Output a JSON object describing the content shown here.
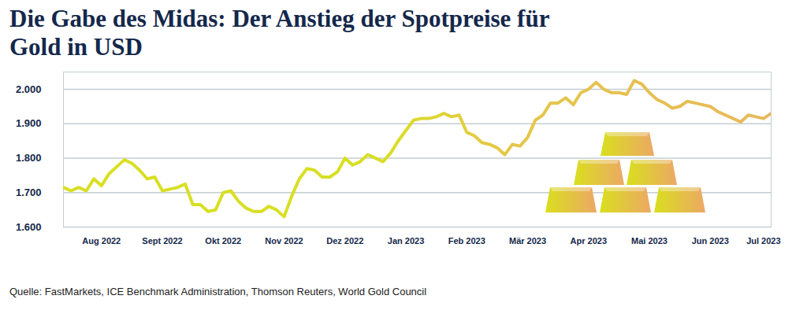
{
  "chart_data": {
    "type": "line",
    "title": "Die Gabe des Midas: Der Anstieg der Spotpreise für Gold in USD",
    "source": "Quelle: FastMarkets, ICE Benchmark Administration, Thomson Reuters, World Gold Council",
    "categories": [
      null,
      null,
      null,
      null,
      null,
      "Aug 2022",
      null,
      null,
      null,
      null,
      null,
      null,
      null,
      "Sept 2022",
      null,
      null,
      null,
      null,
      null,
      null,
      null,
      "Okt 2022",
      null,
      null,
      null,
      null,
      null,
      null,
      null,
      "Nov 2022",
      null,
      null,
      null,
      null,
      null,
      null,
      null,
      "Dez 2022",
      null,
      null,
      null,
      null,
      null,
      null,
      null,
      "Jan 2023",
      null,
      null,
      null,
      null,
      null,
      null,
      null,
      "Feb 2023",
      null,
      null,
      null,
      null,
      null,
      null,
      null,
      "Mär 2023",
      null,
      null,
      null,
      null,
      null,
      null,
      null,
      "Apr 2023",
      null,
      null,
      null,
      null,
      null,
      null,
      null,
      "Mai 2023",
      null,
      null,
      null,
      null,
      null,
      null,
      null,
      "Jun 2023",
      null,
      null,
      null,
      null,
      null,
      null,
      "Jul 2023",
      null
    ],
    "values": [
      1715,
      1705,
      1715,
      1705,
      1740,
      1720,
      1755,
      1775,
      1795,
      1785,
      1765,
      1740,
      1745,
      1705,
      1710,
      1715,
      1725,
      1665,
      1665,
      1645,
      1650,
      1700,
      1705,
      1675,
      1655,
      1645,
      1645,
      1660,
      1650,
      1630,
      1690,
      1740,
      1770,
      1765,
      1745,
      1745,
      1760,
      1800,
      1780,
      1790,
      1810,
      1800,
      1790,
      1815,
      1850,
      1880,
      1910,
      1915,
      1915,
      1920,
      1930,
      1920,
      1925,
      1875,
      1865,
      1845,
      1840,
      1830,
      1810,
      1840,
      1835,
      1860,
      1910,
      1925,
      1960,
      1960,
      1975,
      1955,
      1990,
      2000,
      2020,
      2000,
      1990,
      1990,
      1985,
      2025,
      2015,
      1990,
      1970,
      1960,
      1945,
      1950,
      1965,
      1960,
      1955,
      1950,
      1935,
      1925,
      1915,
      1905,
      1925,
      1920,
      1915,
      1930
    ],
    "color": "#d8df22",
    "ylim": [
      1600,
      2050
    ],
    "yticks": [
      {
        "value": 1600,
        "label": "1.600"
      },
      {
        "value": 1700,
        "label": "1.700"
      },
      {
        "value": 1800,
        "label": "1.800"
      },
      {
        "value": 1900,
        "label": "1.900"
      },
      {
        "value": 2000,
        "label": "2.000"
      }
    ],
    "grid": true
  }
}
